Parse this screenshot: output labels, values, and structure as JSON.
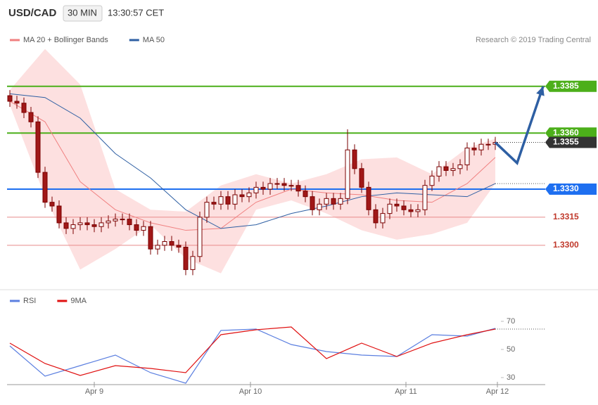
{
  "header": {
    "symbol": "USD/CAD",
    "period": "30 MIN",
    "time": "13:30:57 CET",
    "credit": "Research © 2019 Trading Central"
  },
  "chart_data": [
    {
      "type": "candlestick",
      "xlim": [
        -0.4,
        76.1
      ],
      "ylim": [
        1.3277,
        1.3418
      ],
      "candles": {
        "up_color": "#ffffff",
        "down_color": "#a01818",
        "edge_color": "#7a0000",
        "open": [
          1.338,
          1.3377,
          1.3376,
          1.3371,
          1.3366,
          1.3339,
          1.3323,
          1.3321,
          1.3312,
          1.3309,
          1.3311,
          1.3312,
          1.3311,
          1.331,
          1.3312,
          1.3313,
          1.3314,
          1.3314,
          1.3311,
          1.3308,
          1.331,
          1.3298,
          1.33,
          1.3302,
          1.33,
          1.3299,
          1.3287,
          1.3294,
          1.3315,
          1.3323,
          1.3322,
          1.3326,
          1.3322,
          1.3327,
          1.3326,
          1.3328,
          1.3331,
          1.333,
          1.3333,
          1.3333,
          1.3332,
          1.3332,
          1.3329,
          1.3326,
          1.3319,
          1.3322,
          1.3325,
          1.3322,
          1.3325,
          1.3351,
          1.3341,
          1.3331,
          1.3319,
          1.3312,
          1.3317,
          1.3322,
          1.3321,
          1.3319,
          1.3318,
          1.3319,
          1.3332,
          1.3337,
          1.3342,
          1.334,
          1.3341,
          1.3343,
          1.3352,
          1.3351,
          1.3354,
          1.3354
        ],
        "high": [
          1.3383,
          1.338,
          1.3379,
          1.3374,
          1.3369,
          1.3342,
          1.3326,
          1.3324,
          1.3315,
          1.3314,
          1.3315,
          1.3315,
          1.3314,
          1.3315,
          1.3316,
          1.3317,
          1.3317,
          1.3317,
          1.3314,
          1.3313,
          1.3313,
          1.3303,
          1.3305,
          1.3305,
          1.3303,
          1.3302,
          1.3297,
          1.3318,
          1.3326,
          1.3326,
          1.3329,
          1.3329,
          1.333,
          1.333,
          1.3331,
          1.3334,
          1.3334,
          1.3336,
          1.3336,
          1.3336,
          1.3335,
          1.3335,
          1.3332,
          1.3329,
          1.3325,
          1.3328,
          1.3328,
          1.3328,
          1.3362,
          1.3354,
          1.3344,
          1.3334,
          1.3322,
          1.332,
          1.3325,
          1.3325,
          1.3324,
          1.3322,
          1.3322,
          1.3335,
          1.334,
          1.3345,
          1.3345,
          1.3344,
          1.3346,
          1.3355,
          1.3355,
          1.3357,
          1.3357,
          1.3358
        ],
        "low": [
          1.3374,
          1.3373,
          1.3368,
          1.3363,
          1.3336,
          1.332,
          1.3318,
          1.3309,
          1.3306,
          1.3306,
          1.3308,
          1.3308,
          1.3307,
          1.3307,
          1.3309,
          1.331,
          1.3311,
          1.3308,
          1.3305,
          1.3305,
          1.3295,
          1.3295,
          1.3297,
          1.3297,
          1.3296,
          1.3284,
          1.3284,
          1.3291,
          1.3312,
          1.3319,
          1.3319,
          1.3319,
          1.3319,
          1.3323,
          1.3323,
          1.3325,
          1.3327,
          1.3327,
          1.333,
          1.3329,
          1.3329,
          1.3326,
          1.3323,
          1.3316,
          1.3316,
          1.3319,
          1.3319,
          1.3319,
          1.3322,
          1.3338,
          1.3328,
          1.3316,
          1.3309,
          1.3309,
          1.3314,
          1.3318,
          1.3316,
          1.3315,
          1.3315,
          1.3316,
          1.3329,
          1.3334,
          1.3337,
          1.3337,
          1.3338,
          1.334,
          1.3348,
          1.3348,
          1.3351,
          1.3351
        ],
        "close": [
          1.3377,
          1.3376,
          1.3371,
          1.3366,
          1.3339,
          1.3323,
          1.3321,
          1.3312,
          1.3309,
          1.3311,
          1.3312,
          1.3311,
          1.331,
          1.3312,
          1.3313,
          1.3314,
          1.3314,
          1.3311,
          1.3308,
          1.331,
          1.3298,
          1.33,
          1.3302,
          1.33,
          1.3299,
          1.3287,
          1.3294,
          1.3315,
          1.3323,
          1.3322,
          1.3326,
          1.3322,
          1.3327,
          1.3326,
          1.3328,
          1.3331,
          1.333,
          1.3333,
          1.3333,
          1.3332,
          1.3332,
          1.3329,
          1.3326,
          1.3319,
          1.3322,
          1.3325,
          1.3322,
          1.3325,
          1.3351,
          1.3341,
          1.3331,
          1.3319,
          1.3312,
          1.3317,
          1.3322,
          1.3321,
          1.3319,
          1.3318,
          1.3319,
          1.3332,
          1.3337,
          1.3342,
          1.334,
          1.3341,
          1.3343,
          1.3352,
          1.3351,
          1.3354,
          1.3354,
          1.3355
        ]
      },
      "series": [
        {
          "name": "MA 20 + Bollinger Bands",
          "color": "#f08080",
          "band_color": "#fde0e0",
          "x": [
            0,
            5,
            10,
            15,
            20,
            25,
            30,
            35,
            40,
            45,
            50,
            55,
            60,
            65,
            69
          ],
          "values": [
            1.3377,
            1.3366,
            1.3334,
            1.3319,
            1.3312,
            1.3308,
            1.3309,
            1.3323,
            1.333,
            1.3328,
            1.3327,
            1.3324,
            1.3323,
            1.3333,
            1.3347
          ],
          "upper": [
            1.3383,
            1.3405,
            1.3386,
            1.333,
            1.3319,
            1.3318,
            1.3332,
            1.3338,
            1.3333,
            1.3338,
            1.3346,
            1.3347,
            1.3338,
            1.3352,
            1.3357
          ],
          "lower": [
            1.3375,
            1.3326,
            1.3287,
            1.3298,
            1.3311,
            1.3293,
            1.3285,
            1.3319,
            1.3324,
            1.3317,
            1.3308,
            1.3303,
            1.3306,
            1.3312,
            1.3333
          ]
        },
        {
          "name": "MA 50",
          "color": "#2e5fa3",
          "last_marker": true,
          "x": [
            0,
            5,
            10,
            15,
            20,
            25,
            30,
            35,
            40,
            45,
            50,
            55,
            60,
            65,
            69
          ],
          "values": [
            1.3381,
            1.3379,
            1.3368,
            1.3349,
            1.3336,
            1.3319,
            1.3309,
            1.3311,
            1.3317,
            1.3321,
            1.3326,
            1.3328,
            1.3327,
            1.3326,
            1.3333
          ]
        }
      ],
      "levels": [
        {
          "value": 1.3385,
          "label": "1.3385",
          "color": "#4caf1a",
          "box": true
        },
        {
          "value": 1.336,
          "label": "1.3360",
          "color": "#4caf1a",
          "box": true
        },
        {
          "value": 1.3355,
          "label": "1.3355",
          "color": "#333333",
          "box": true,
          "dotted": true
        },
        {
          "value": 1.333,
          "label": "1.3330",
          "color": "#1e6ff0",
          "box": true
        },
        {
          "value": 1.3315,
          "label": "1.3315",
          "color": "#e88a8a",
          "box": false
        },
        {
          "value": 1.33,
          "label": "1.3300",
          "color": "#e88a8a",
          "box": false
        }
      ],
      "forecast": {
        "color": "#2e5fa3",
        "x": [
          69,
          72.1,
          75.8
        ],
        "values": [
          1.3355,
          1.3344,
          1.3385
        ]
      }
    },
    {
      "type": "line",
      "xlim": [
        -0.4,
        76.1
      ],
      "ylim": [
        23.5,
        78.5
      ],
      "yticks": [
        30,
        50,
        70
      ],
      "xticks": [
        {
          "value": 12,
          "label": "Apr 9"
        },
        {
          "value": 34.2,
          "label": "Apr 10"
        },
        {
          "value": 56.3,
          "label": "Apr 11"
        },
        {
          "value": 69.3,
          "label": "Apr 12"
        }
      ],
      "series": [
        {
          "name": "RSI",
          "color": "#5b7fe0",
          "x": [
            0,
            5,
            10,
            15,
            20,
            25,
            30,
            35,
            40,
            45,
            50,
            55,
            60,
            65,
            69
          ],
          "values": [
            52.5,
            31,
            38.5,
            46,
            33.5,
            26,
            63.5,
            64.5,
            53.5,
            48.5,
            46,
            45,
            60.5,
            59.5,
            65
          ]
        },
        {
          "name": "9MA",
          "color": "#e01010",
          "last_marker": true,
          "x": [
            0,
            5,
            10,
            15,
            20,
            25,
            30,
            35,
            40,
            45,
            50,
            55,
            60,
            65,
            69
          ],
          "values": [
            54.5,
            40,
            31.5,
            38.5,
            36.5,
            33.5,
            60.5,
            64,
            66,
            43.5,
            54.5,
            45,
            54.5,
            60.5,
            64.5
          ]
        }
      ]
    }
  ]
}
